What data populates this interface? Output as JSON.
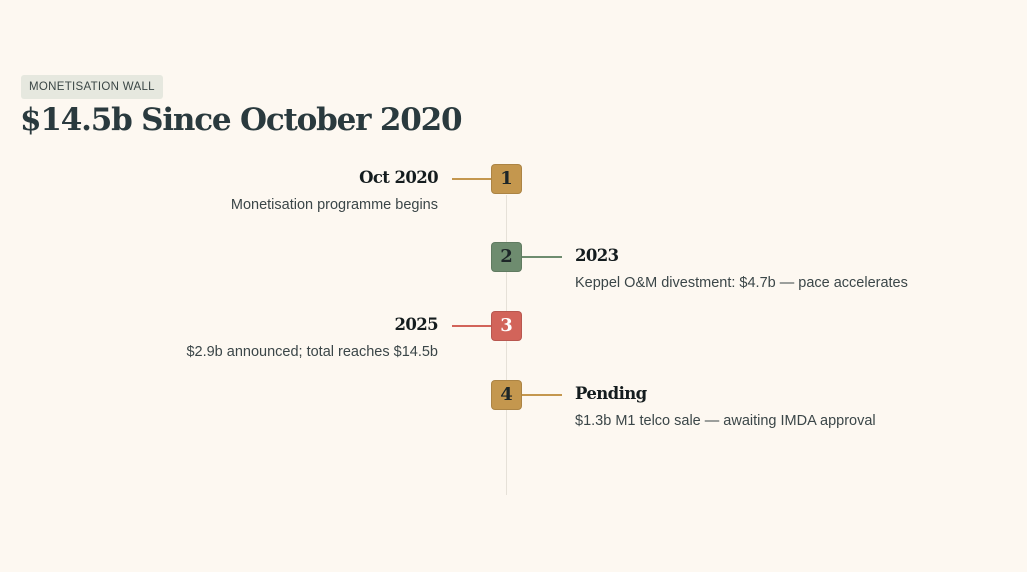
{
  "header": {
    "tag": "MONETISATION WALL",
    "title": "$14.5b Since October 2020"
  },
  "timeline": {
    "events": [
      {
        "number": "1",
        "label": "Oct 2020",
        "description": "Monetisation programme begins",
        "side": "left",
        "color": "#c4974e",
        "text_color": "#1d2628"
      },
      {
        "number": "2",
        "label": "2023",
        "description": "Keppel O&M divestment: $4.7b — pace accelerates",
        "side": "right",
        "color": "#6e8c6f",
        "text_color": "#1d2628"
      },
      {
        "number": "3",
        "label": "2025",
        "description": "$2.9b announced; total reaches $14.5b",
        "side": "left",
        "color": "#d2645a",
        "text_color": "#ffffff"
      },
      {
        "number": "4",
        "label": "Pending",
        "description": "$1.3b M1 telco sale — awaiting IMDA approval",
        "side": "right",
        "color": "#c4974e",
        "text_color": "#1d2628"
      }
    ]
  },
  "colors": {
    "background": "#fdf8f1",
    "axis": "#e6e1d8",
    "tag_background": "#e6e8df"
  }
}
